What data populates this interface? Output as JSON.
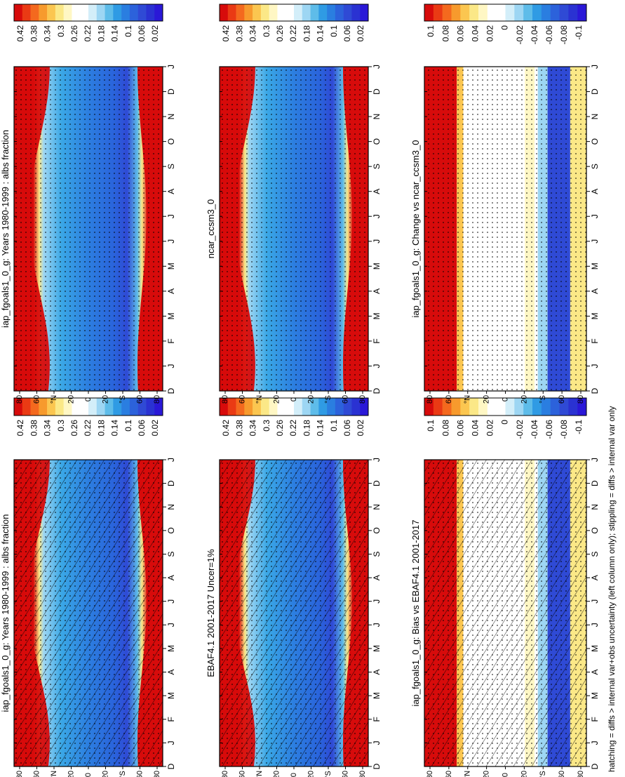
{
  "figure": {
    "footnote": "hatching = diffs > internal var+obs uncertainty (left column only); stippling = diffs > internal var only"
  },
  "chart_data": [
    {
      "id": "model",
      "type": "heatmap",
      "title": "iap_fgoals1_0_g: Years 1980-1999 : albs fraction",
      "xlabel": "",
      "ylabel": "",
      "months": [
        "D",
        "J",
        "F",
        "M",
        "A",
        "M",
        "J",
        "J",
        "A",
        "S",
        "O",
        "N",
        "D",
        "J"
      ],
      "lat_labels": [
        "80",
        "60",
        "°N",
        "20",
        "0",
        "20",
        "°S",
        "60",
        "80"
      ],
      "colorbar": {
        "ticks": [
          "0.42",
          "0.38",
          "0.34",
          "0.3",
          "0.26",
          "0.22",
          "0.18",
          "0.14",
          "0.1",
          "0.06",
          "0.02"
        ],
        "colors": [
          "#d70b0b",
          "#ea3a14",
          "#f4691e",
          "#f79a2d",
          "#fbc650",
          "#fbe887",
          "#fff7c4",
          "#ffffff",
          "#ffffff",
          "#d3eef9",
          "#9dd6f3",
          "#5ebce9",
          "#2f9be4",
          "#2a7ee0",
          "#2c62db",
          "#2f4ad5",
          "#2a32d2",
          "#2a18d7"
        ]
      },
      "zones": {
        "polar_value": 0.45,
        "tropics_value": 0.12,
        "subtropics_value": 0.17
      },
      "hatching": true,
      "stippling": true
    },
    {
      "id": "obs",
      "type": "heatmap",
      "title": "EBAF4.1 2001-2017 Uncer=1%",
      "months": [
        "D",
        "J",
        "F",
        "M",
        "A",
        "M",
        "J",
        "J",
        "A",
        "S",
        "O",
        "N",
        "D",
        "J"
      ],
      "lat_labels": [
        "80",
        "60",
        "°N",
        "20",
        "0",
        "20",
        "°S",
        "60",
        "80"
      ],
      "colorbar": {
        "ticks": [
          "0.42",
          "0.38",
          "0.34",
          "0.3",
          "0.26",
          "0.22",
          "0.18",
          "0.14",
          "0.1",
          "0.06",
          "0.02"
        ],
        "colors": [
          "#d70b0b",
          "#ea3a14",
          "#f4691e",
          "#f79a2d",
          "#fbc650",
          "#fbe887",
          "#fff7c4",
          "#ffffff",
          "#ffffff",
          "#d3eef9",
          "#9dd6f3",
          "#5ebce9",
          "#2f9be4",
          "#2a7ee0",
          "#2c62db",
          "#2f4ad5",
          "#2a32d2",
          "#2a18d7"
        ]
      },
      "zones": {
        "polar_value": 0.45,
        "tropics_value": 0.13,
        "subtropics_value": 0.18
      },
      "hatching": true,
      "stippling": true
    },
    {
      "id": "bias",
      "type": "heatmap",
      "title": "iap_fgoals1_0_g: Bias vs EBAF4.1 2001-2017",
      "months": [
        "D",
        "J",
        "F",
        "M",
        "A",
        "M",
        "J",
        "J",
        "A",
        "S",
        "O",
        "N",
        "D",
        "J"
      ],
      "lat_labels": [
        "80",
        "60",
        "°N",
        "20",
        "0",
        "20",
        "°S",
        "60",
        "80"
      ],
      "colorbar": {
        "ticks": [
          "0.1",
          "0.08",
          "0.06",
          "0.04",
          "0.02",
          "0",
          "-0.02",
          "-0.04",
          "-0.06",
          "-0.08",
          "-0.1"
        ],
        "colors": [
          "#d70b0b",
          "#ea3a14",
          "#f4691e",
          "#f79a2d",
          "#fbc650",
          "#fbe887",
          "#fff7c4",
          "#ffffff",
          "#ffffff",
          "#d3eef9",
          "#9dd6f3",
          "#5ebce9",
          "#2f9be4",
          "#2a7ee0",
          "#2c62db",
          "#2f4ad5",
          "#2a32d2",
          "#2a18d7"
        ]
      },
      "hatching": true,
      "stippling": true
    },
    {
      "id": "ref",
      "type": "heatmap",
      "title": "iap_fgoals1_0_g: Years 1980-1999 : albs fraction",
      "months": [
        "D",
        "J",
        "F",
        "M",
        "A",
        "M",
        "J",
        "J",
        "A",
        "S",
        "O",
        "N",
        "D",
        "J"
      ],
      "lat_labels": [
        "80",
        "60",
        "°N",
        "20",
        "0",
        "20",
        "°S",
        "60",
        "80"
      ],
      "colorbar": {
        "ticks": [
          "0.42",
          "0.38",
          "0.34",
          "0.3",
          "0.26",
          "0.22",
          "0.18",
          "0.14",
          "0.1",
          "0.06",
          "0.02"
        ],
        "colors": [
          "#d70b0b",
          "#ea3a14",
          "#f4691e",
          "#f79a2d",
          "#fbc650",
          "#fbe887",
          "#fff7c4",
          "#ffffff",
          "#ffffff",
          "#d3eef9",
          "#9dd6f3",
          "#5ebce9",
          "#2f9be4",
          "#2a7ee0",
          "#2c62db",
          "#2f4ad5",
          "#2a32d2",
          "#2a18d7"
        ]
      },
      "stippling": true
    },
    {
      "id": "ncar",
      "type": "heatmap",
      "title": "ncar_ccsm3_0",
      "months": [
        "D",
        "J",
        "F",
        "M",
        "A",
        "M",
        "J",
        "J",
        "A",
        "S",
        "O",
        "N",
        "D",
        "J"
      ],
      "lat_labels": [
        "80",
        "60",
        "°N",
        "20",
        "0",
        "20",
        "°S",
        "60",
        "80"
      ],
      "colorbar": {
        "ticks": [
          "0.42",
          "0.38",
          "0.34",
          "0.3",
          "0.26",
          "0.22",
          "0.18",
          "0.14",
          "0.1",
          "0.06",
          "0.02"
        ],
        "colors": [
          "#d70b0b",
          "#ea3a14",
          "#f4691e",
          "#f79a2d",
          "#fbc650",
          "#fbe887",
          "#fff7c4",
          "#ffffff",
          "#ffffff",
          "#d3eef9",
          "#9dd6f3",
          "#5ebce9",
          "#2f9be4",
          "#2a7ee0",
          "#2c62db",
          "#2f4ad5",
          "#2a32d2",
          "#2a18d7"
        ]
      },
      "stippling": true
    },
    {
      "id": "change",
      "type": "heatmap",
      "title": "iap_fgoals1_0_g: Change vs ncar_ccsm3_0",
      "months": [
        "D",
        "J",
        "F",
        "M",
        "A",
        "M",
        "J",
        "J",
        "A",
        "S",
        "O",
        "N",
        "D",
        "J"
      ],
      "lat_labels": [
        "80",
        "60",
        "°N",
        "20",
        "0",
        "20",
        "°S",
        "60",
        "80"
      ],
      "colorbar": {
        "ticks": [
          "0.1",
          "0.08",
          "0.06",
          "0.04",
          "0.02",
          "0",
          "-0.02",
          "-0.04",
          "-0.06",
          "-0.08",
          "-0.1"
        ],
        "colors": [
          "#d70b0b",
          "#ea3a14",
          "#f4691e",
          "#f79a2d",
          "#fbc650",
          "#fbe887",
          "#fff7c4",
          "#ffffff",
          "#ffffff",
          "#d3eef9",
          "#9dd6f3",
          "#5ebce9",
          "#2f9be4",
          "#2a7ee0",
          "#2c62db",
          "#2f4ad5",
          "#2a32d2",
          "#2a18d7"
        ]
      },
      "stippling": true
    }
  ]
}
